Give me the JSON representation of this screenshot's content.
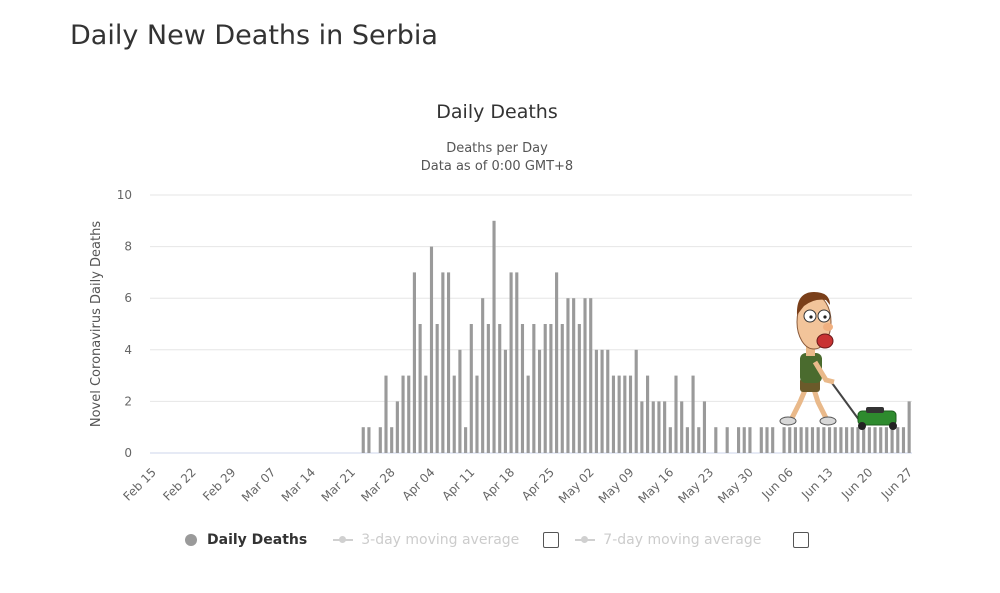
{
  "page": {
    "title": "Daily New Deaths in Serbia"
  },
  "chart_data": {
    "type": "bar",
    "title": "Daily Deaths",
    "subtitle_lines": [
      "Deaths per Day",
      "Data as of 0:00 GMT+8"
    ],
    "ylabel": "Novel Coronavirus Daily Deaths",
    "xlabel": "",
    "ylim": [
      0,
      10
    ],
    "yticks": [
      0,
      2,
      4,
      6,
      8,
      10
    ],
    "grid": true,
    "legend_position": "bottom",
    "bar_color": "#9a9a9a",
    "start_date": "2020-02-15",
    "xtick_labels": [
      "Feb 15",
      "Feb 22",
      "Feb 29",
      "Mar 07",
      "Mar 14",
      "Mar 21",
      "Mar 28",
      "Apr 04",
      "Apr 11",
      "Apr 18",
      "Apr 25",
      "May 02",
      "May 09",
      "May 16",
      "May 23",
      "May 30",
      "Jun 06",
      "Jun 13",
      "Jun 20",
      "Jun 27"
    ],
    "series": [
      {
        "name": "Daily Deaths",
        "values": [
          0,
          0,
          0,
          0,
          0,
          0,
          0,
          0,
          0,
          0,
          0,
          0,
          0,
          0,
          0,
          0,
          0,
          0,
          0,
          0,
          0,
          0,
          0,
          0,
          0,
          0,
          0,
          0,
          0,
          0,
          0,
          0,
          0,
          0,
          0,
          0,
          0,
          1,
          1,
          0,
          1,
          3,
          1,
          2,
          3,
          3,
          7,
          5,
          3,
          8,
          5,
          7,
          7,
          3,
          4,
          1,
          5,
          3,
          6,
          5,
          9,
          5,
          4,
          7,
          7,
          5,
          3,
          5,
          4,
          5,
          5,
          7,
          5,
          6,
          6,
          5,
          6,
          6,
          4,
          4,
          4,
          3,
          3,
          3,
          3,
          4,
          2,
          3,
          2,
          2,
          2,
          1,
          3,
          2,
          1,
          3,
          1,
          2,
          0,
          1,
          0,
          1,
          0,
          1,
          1,
          1,
          0,
          1,
          1,
          1,
          0,
          1,
          1,
          1,
          1,
          1,
          1,
          1,
          1,
          1,
          1,
          1,
          1,
          1,
          1,
          1,
          1,
          1,
          1,
          1,
          1,
          1,
          1,
          2
        ]
      }
    ]
  },
  "legend": {
    "items": [
      {
        "label": "Daily Deaths",
        "active": true
      },
      {
        "label": "3-day moving average",
        "active": false
      },
      {
        "label": "7-day moving average",
        "active": false
      }
    ]
  },
  "icons": {
    "overlay": "lawnmower-man-icon"
  }
}
